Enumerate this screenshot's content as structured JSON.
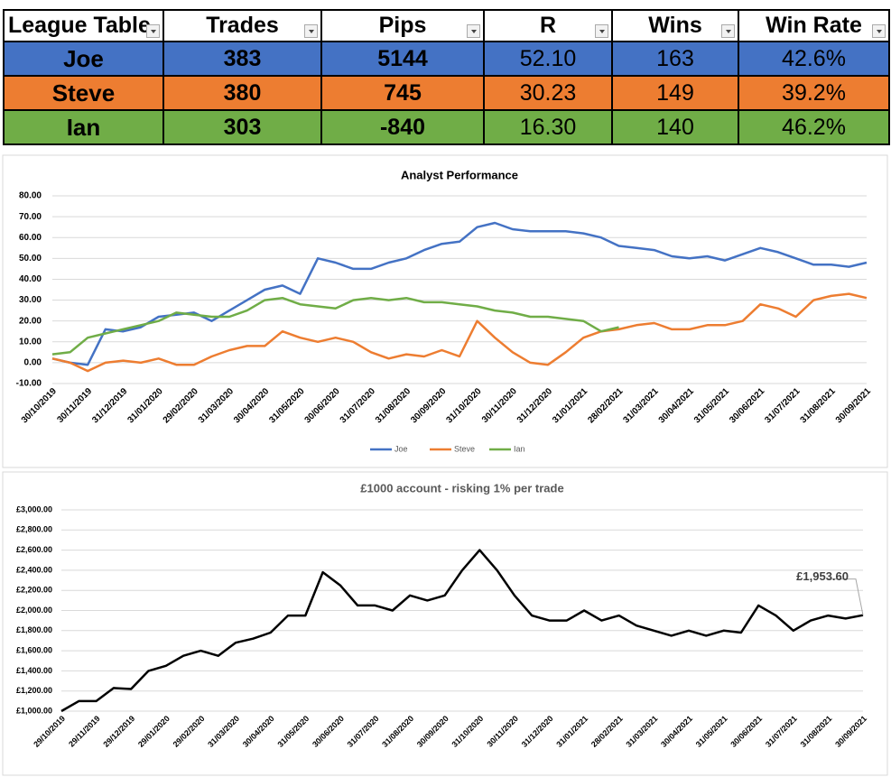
{
  "table": {
    "headers": [
      "League Table",
      "Trades",
      "Pips",
      "R",
      "Wins",
      "Win Rate"
    ],
    "rows": [
      [
        "Joe",
        "383",
        "5144",
        "52.10",
        "163",
        "42.6%"
      ],
      [
        "Steve",
        "380",
        "745",
        "30.23",
        "149",
        "39.2%"
      ],
      [
        "Ian",
        "303",
        "-840",
        "16.30",
        "140",
        "46.2%"
      ]
    ],
    "row_colors": [
      "#4472c4",
      "#ed7d31",
      "#70ad47"
    ]
  },
  "chart_data": [
    {
      "type": "line",
      "title": "Analyst Performance",
      "categories": [
        "30/10/2019",
        null,
        "30/11/2019",
        null,
        "31/12/2019",
        null,
        "31/01/2020",
        null,
        "29/02/2020",
        null,
        "31/03/2020",
        null,
        "30/04/2020",
        null,
        "31/05/2020",
        null,
        "30/06/2020",
        null,
        "31/07/2020",
        null,
        "31/08/2020",
        null,
        "30/09/2020",
        null,
        "31/10/2020",
        null,
        "30/11/2020",
        null,
        "31/12/2020",
        null,
        "31/01/2021",
        null,
        "28/02/2021",
        null,
        "31/03/2021",
        null,
        "30/04/2021",
        null,
        "31/05/2021",
        null,
        "30/06/2021",
        null,
        "31/07/2021",
        null,
        "31/08/2021",
        null,
        "30/09/2021"
      ],
      "series": [
        {
          "name": "Joe",
          "color": "#4472c4",
          "values": [
            2,
            0,
            -1,
            16,
            15,
            17,
            22,
            23,
            24,
            20,
            25,
            30,
            35,
            37,
            33,
            50,
            48,
            45,
            45,
            48,
            50,
            54,
            57,
            58,
            65,
            67,
            64,
            63,
            63,
            63,
            62,
            60,
            56,
            55,
            54,
            51,
            50,
            51,
            49,
            52,
            55,
            53,
            50,
            47,
            47,
            46,
            48
          ]
        },
        {
          "name": "Steve",
          "color": "#ed7d31",
          "values": [
            2,
            0,
            -4,
            0,
            1,
            0,
            2,
            -1,
            -1,
            3,
            6,
            8,
            8,
            15,
            12,
            10,
            12,
            10,
            5,
            2,
            4,
            3,
            6,
            3,
            20,
            12,
            5,
            0,
            -1,
            5,
            12,
            15,
            16,
            18,
            19,
            16,
            16,
            18,
            18,
            20,
            28,
            26,
            22,
            30,
            32,
            33,
            31
          ]
        },
        {
          "name": "Ian",
          "color": "#70ad47",
          "values": [
            4,
            5,
            12,
            14,
            16,
            18,
            20,
            24,
            23,
            22,
            22,
            25,
            30,
            31,
            28,
            27,
            26,
            30,
            31,
            30,
            31,
            29,
            29,
            28,
            27,
            25,
            24,
            22,
            22,
            21,
            20,
            15,
            17,
            null,
            null,
            null,
            null,
            null,
            null,
            null,
            null,
            null,
            null,
            null,
            null,
            null,
            null
          ]
        }
      ],
      "ylim": [
        -10,
        80
      ],
      "yticks": [
        {
          "value": -10,
          "label": "-10.00"
        },
        {
          "value": 0,
          "label": "0.00"
        },
        {
          "value": 10,
          "label": "10.00"
        },
        {
          "value": 20,
          "label": "20.00"
        },
        {
          "value": 30,
          "label": "30.00"
        },
        {
          "value": 40,
          "label": "40.00"
        },
        {
          "value": 50,
          "label": "50.00"
        },
        {
          "value": 60,
          "label": "60.00"
        },
        {
          "value": 70,
          "label": "70.00"
        },
        {
          "value": 80,
          "label": "80.00"
        }
      ],
      "grid": true,
      "legend": "bottom"
    },
    {
      "type": "line",
      "title": "£1000 account - risking 1% per trade",
      "categories": [
        "29/10/2019",
        null,
        "29/11/2019",
        null,
        "29/12/2019",
        null,
        "29/01/2020",
        null,
        "29/02/2020",
        null,
        "31/03/2020",
        null,
        "30/04/2020",
        null,
        "31/05/2020",
        null,
        "30/06/2020",
        null,
        "31/07/2020",
        null,
        "31/08/2020",
        null,
        "30/09/2020",
        null,
        "31/10/2020",
        null,
        "30/11/2020",
        null,
        "31/12/2020",
        null,
        "31/01/2021",
        null,
        "28/02/2021",
        null,
        "31/03/2021",
        null,
        "30/04/2021",
        null,
        "31/05/2021",
        null,
        "30/06/2021",
        null,
        "31/07/2021",
        null,
        "31/08/2021",
        null,
        "30/09/2021"
      ],
      "series": [
        {
          "color": "#000000",
          "values": [
            1000,
            1100,
            1100,
            1230,
            1220,
            1400,
            1450,
            1550,
            1600,
            1550,
            1680,
            1720,
            1780,
            1950,
            1950,
            2380,
            2250,
            2050,
            2050,
            2000,
            2150,
            2100,
            2150,
            2400,
            2600,
            2400,
            2150,
            1950,
            1900,
            1900,
            2000,
            1900,
            1950,
            1850,
            1800,
            1750,
            1800,
            1750,
            1800,
            1780,
            2050,
            1950,
            1800,
            1900,
            1950,
            1920,
            1953.6
          ]
        }
      ],
      "annotation": "£1,953.60",
      "ylim": [
        1000,
        3000
      ],
      "yticks": [
        {
          "value": 1000,
          "label": "£1,000.00"
        },
        {
          "value": 1200,
          "label": "£1,200.00"
        },
        {
          "value": 1400,
          "label": "£1,400.00"
        },
        {
          "value": 1600,
          "label": "£1,600.00"
        },
        {
          "value": 1800,
          "label": "£1,800.00"
        },
        {
          "value": 2000,
          "label": "£2,000.00"
        },
        {
          "value": 2200,
          "label": "£2,200.00"
        },
        {
          "value": 2400,
          "label": "£2,400.00"
        },
        {
          "value": 2600,
          "label": "£2,600.00"
        },
        {
          "value": 2800,
          "label": "£2,800.00"
        },
        {
          "value": 3000,
          "label": "£3,000.00"
        }
      ],
      "grid": true
    }
  ]
}
